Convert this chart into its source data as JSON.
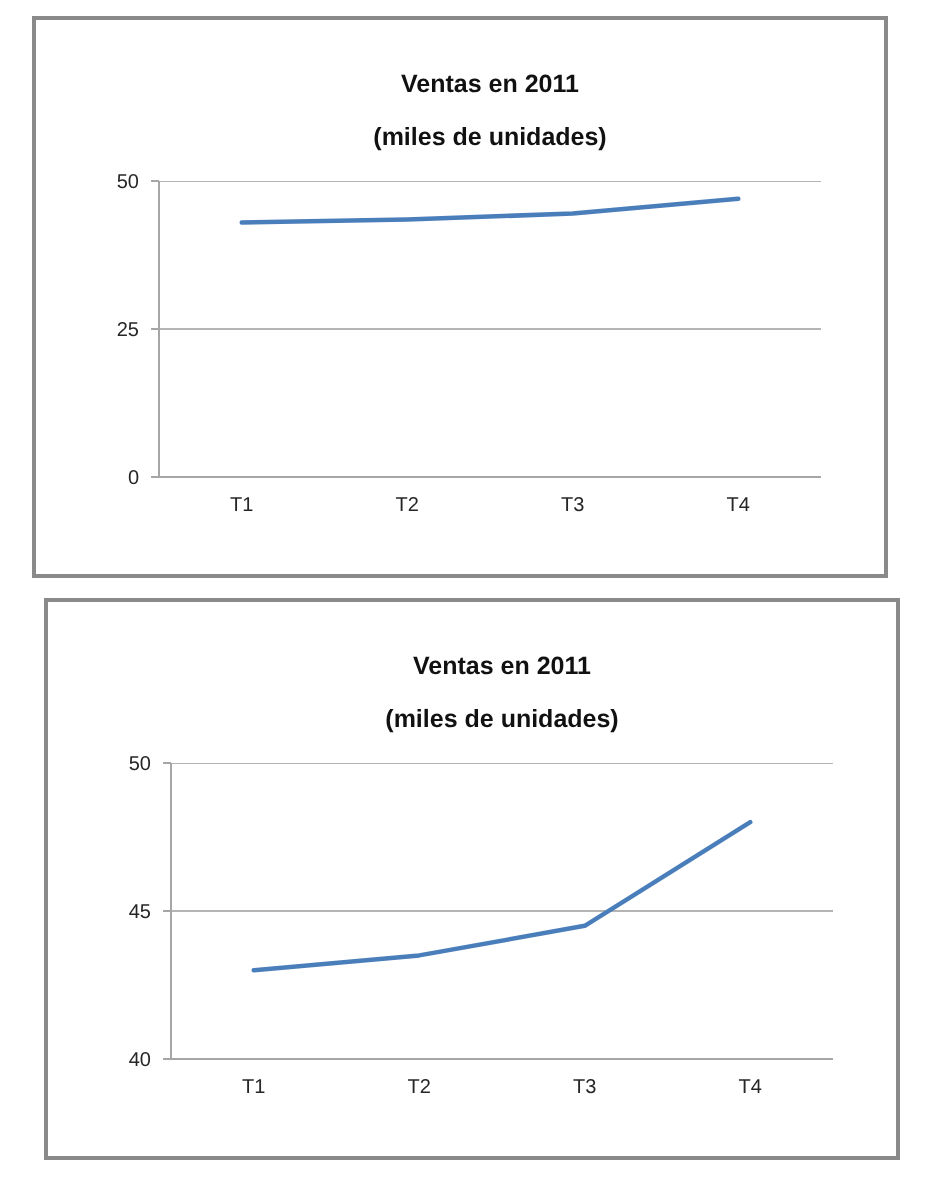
{
  "chart_data": [
    {
      "type": "line",
      "title": "Ventas en 2011",
      "subtitle": "(miles de unidades)",
      "categories": [
        "T1",
        "T2",
        "T3",
        "T4"
      ],
      "series": [
        {
          "color": "#4a7ebb",
          "values": [
            43,
            43.5,
            44.5,
            47
          ]
        }
      ],
      "ylim": [
        0,
        50
      ],
      "yticks": [
        0,
        25,
        50
      ],
      "grid": "y"
    },
    {
      "type": "line",
      "title": "Ventas en 2011",
      "subtitle": "(miles de unidades)",
      "categories": [
        "T1",
        "T2",
        "T3",
        "T4"
      ],
      "series": [
        {
          "color": "#4a7ebb",
          "values": [
            43,
            43.5,
            44.5,
            48
          ]
        }
      ],
      "ylim": [
        40,
        50
      ],
      "yticks": [
        40,
        45,
        50
      ],
      "grid": "y"
    }
  ]
}
